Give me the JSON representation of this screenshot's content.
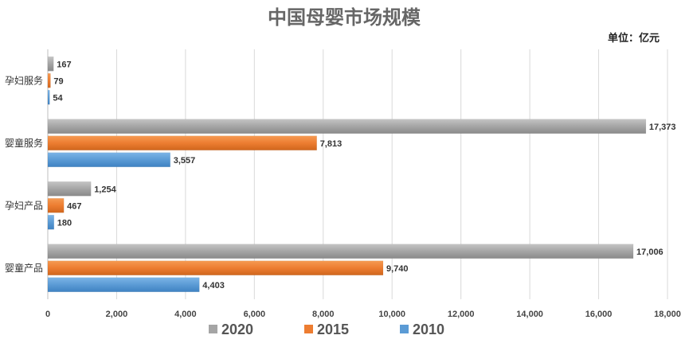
{
  "chart_data": {
    "type": "bar",
    "orientation": "horizontal",
    "title": "中国母婴市场规模",
    "unit_label": "单位：亿元",
    "categories": [
      "孕妇服务",
      "婴童服务",
      "孕妇产品",
      "婴童产品"
    ],
    "series": [
      {
        "name": "2020",
        "color": "#a5a5a5",
        "values": [
          167,
          17373,
          1254,
          17006
        ]
      },
      {
        "name": "2015",
        "color": "#ed7d31",
        "values": [
          79,
          7813,
          467,
          9740
        ]
      },
      {
        "name": "2010",
        "color": "#5b9bd5",
        "values": [
          54,
          3557,
          180,
          4403
        ]
      }
    ],
    "xlim": [
      0,
      18000
    ],
    "xticks": [
      0,
      2000,
      4000,
      6000,
      8000,
      10000,
      12000,
      14000,
      16000,
      18000
    ],
    "xtick_labels": [
      "0",
      "2,000",
      "4,000",
      "6,000",
      "8,000",
      "10,000",
      "12,000",
      "14,000",
      "16,000",
      "18,000"
    ],
    "grid": true,
    "legend_position": "bottom"
  }
}
